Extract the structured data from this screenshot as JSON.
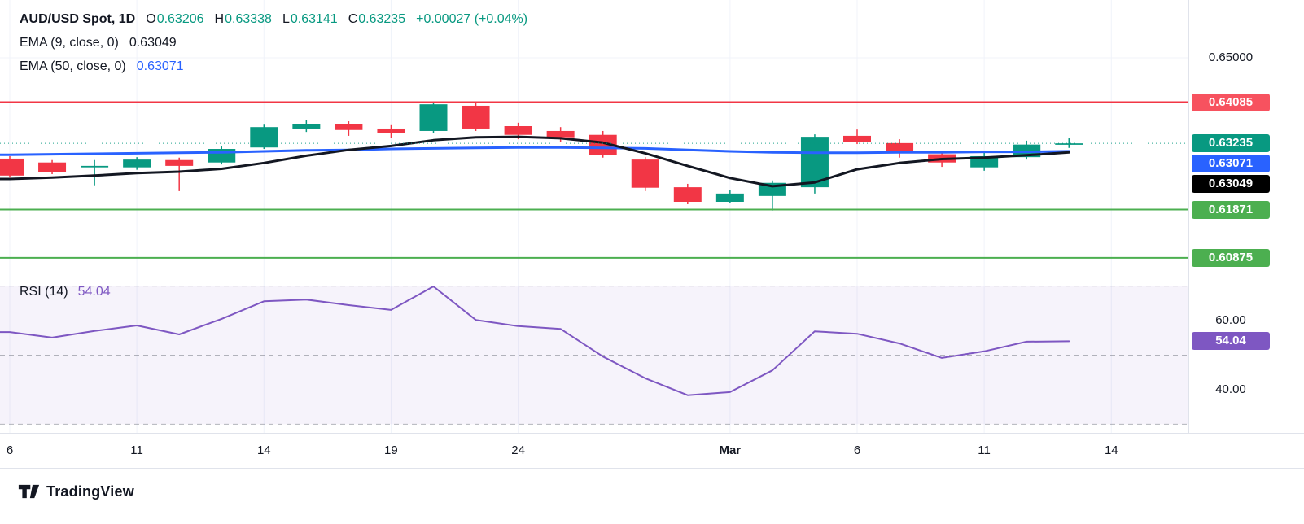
{
  "header": {
    "symbol": "AUD/USD Spot, 1D",
    "ohlc": [
      {
        "label": "O",
        "value": "0.63206"
      },
      {
        "label": "H",
        "value": "0.63338"
      },
      {
        "label": "L",
        "value": "0.63141"
      },
      {
        "label": "C",
        "value": "0.63235"
      }
    ],
    "change": "+0.00027 (+0.04%)",
    "ema9_label": "EMA (9, close, 0)",
    "ema9_value": "0.63049",
    "ema50_label": "EMA (50, close, 0)",
    "ema50_value": "0.63071"
  },
  "rsi_panel": {
    "label": "RSI (14)",
    "value": "54.04"
  },
  "footer": {
    "brand": "TradingView"
  },
  "colors": {
    "up": "#089981",
    "down": "#f23645",
    "resistance_line": "#f23645",
    "support_line": "#4caf50",
    "grid": "#f0f3fa",
    "dashed": "#787b86",
    "rsi_line": "#7e57c2",
    "red_badge": "#f7525f",
    "close_badge": "#089981",
    "blue_badge": "#2962ff",
    "black_badge": "#000000",
    "support_badge": "#4caf50",
    "purple_badge": "#7e57c2",
    "text": "#131722",
    "header_green": "#089981"
  },
  "price_scale": {
    "labels": [
      {
        "text": "0.65000",
        "style": "plain",
        "value": 0.65,
        "pane": "price"
      },
      {
        "text": "0.64085",
        "style": "red",
        "value": 0.64085,
        "pane": "price"
      },
      {
        "text": "0.63235",
        "style": "close",
        "value": 0.63235,
        "pane": "price",
        "stack": 0
      },
      {
        "text": "0.63071",
        "style": "blue",
        "value": 0.63071,
        "pane": "price",
        "stack": 1
      },
      {
        "text": "0.63049",
        "style": "black",
        "value": 0.63049,
        "pane": "price",
        "stack": 2
      },
      {
        "text": "0.61871",
        "style": "support",
        "value": 0.61871,
        "pane": "price"
      },
      {
        "text": "0.60875",
        "style": "support",
        "value": 0.60875,
        "pane": "price"
      },
      {
        "text": "60.00",
        "style": "plain",
        "value": 60,
        "pane": "rsi"
      },
      {
        "text": "54.04",
        "style": "purple",
        "value": 54.04,
        "pane": "rsi"
      },
      {
        "text": "40.00",
        "style": "plain",
        "value": 40,
        "pane": "rsi"
      }
    ]
  },
  "chart_data": {
    "type": "candlestick",
    "title": "AUD/USD Spot, 1D",
    "interval": "1D",
    "price_ylim": [
      0.6047,
      0.6619
    ],
    "rsi_ylim": [
      27.5,
      72.5
    ],
    "price_grid": 0.65,
    "levels": {
      "resistance": 0.64085,
      "support": [
        0.61871,
        0.60875
      ],
      "last_close": 0.63235
    },
    "candles": [
      {
        "t": "Feb 6",
        "o": 0.6292,
        "h": 0.6297,
        "l": 0.6253,
        "c": 0.6257
      },
      {
        "t": "Feb 7",
        "o": 0.6284,
        "h": 0.6289,
        "l": 0.626,
        "c": 0.6264
      },
      {
        "t": "Feb 10",
        "o": 0.6274,
        "h": 0.6289,
        "l": 0.6237,
        "c": 0.6277
      },
      {
        "t": "Feb 11",
        "o": 0.6274,
        "h": 0.6295,
        "l": 0.6269,
        "c": 0.629
      },
      {
        "t": "Feb 12",
        "o": 0.6289,
        "h": 0.6294,
        "l": 0.6225,
        "c": 0.6277
      },
      {
        "t": "Feb 13",
        "o": 0.6284,
        "h": 0.6317,
        "l": 0.628,
        "c": 0.6312
      },
      {
        "t": "Feb 14",
        "o": 0.6315,
        "h": 0.6362,
        "l": 0.6312,
        "c": 0.6357
      },
      {
        "t": "Feb 17",
        "o": 0.6354,
        "h": 0.6371,
        "l": 0.6347,
        "c": 0.6363
      },
      {
        "t": "Feb 18",
        "o": 0.6363,
        "h": 0.6369,
        "l": 0.6339,
        "c": 0.6351
      },
      {
        "t": "Feb 19",
        "o": 0.6354,
        "h": 0.6361,
        "l": 0.6334,
        "c": 0.6344
      },
      {
        "t": "Feb 20",
        "o": 0.6349,
        "h": 0.6408,
        "l": 0.6344,
        "c": 0.6404
      },
      {
        "t": "Feb 21",
        "o": 0.6401,
        "h": 0.6406,
        "l": 0.6349,
        "c": 0.6354
      },
      {
        "t": "Feb 24",
        "o": 0.6359,
        "h": 0.6366,
        "l": 0.6332,
        "c": 0.6341
      },
      {
        "t": "Feb 25",
        "o": 0.6349,
        "h": 0.6357,
        "l": 0.6327,
        "c": 0.6336
      },
      {
        "t": "Feb 26",
        "o": 0.6341,
        "h": 0.6349,
        "l": 0.6294,
        "c": 0.6299
      },
      {
        "t": "Feb 27",
        "o": 0.629,
        "h": 0.6295,
        "l": 0.6225,
        "c": 0.6232
      },
      {
        "t": "Feb 28",
        "o": 0.6233,
        "h": 0.624,
        "l": 0.6198,
        "c": 0.6203
      },
      {
        "t": "Mar 3",
        "o": 0.6203,
        "h": 0.6227,
        "l": 0.62,
        "c": 0.622
      },
      {
        "t": "Mar 4",
        "o": 0.6215,
        "h": 0.6247,
        "l": 0.6185,
        "c": 0.6242
      },
      {
        "t": "Mar 5",
        "o": 0.6233,
        "h": 0.6342,
        "l": 0.622,
        "c": 0.6337
      },
      {
        "t": "Mar 6",
        "o": 0.6339,
        "h": 0.6352,
        "l": 0.6322,
        "c": 0.6327
      },
      {
        "t": "Mar 7",
        "o": 0.6324,
        "h": 0.6332,
        "l": 0.6294,
        "c": 0.6304
      },
      {
        "t": "Mar 10",
        "o": 0.6301,
        "h": 0.6307,
        "l": 0.6275,
        "c": 0.6284
      },
      {
        "t": "Mar 11",
        "o": 0.6274,
        "h": 0.6304,
        "l": 0.6267,
        "c": 0.6297
      },
      {
        "t": "Mar 12",
        "o": 0.6295,
        "h": 0.6329,
        "l": 0.629,
        "c": 0.6321
      },
      {
        "t": "Mar 13",
        "o": 0.63206,
        "h": 0.63338,
        "l": 0.63141,
        "c": 0.63235
      }
    ],
    "ema9": [
      0.625,
      0.6253,
      0.6257,
      0.6262,
      0.6265,
      0.6271,
      0.6283,
      0.6298,
      0.631,
      0.6318,
      0.633,
      0.6336,
      0.6337,
      0.6334,
      0.6325,
      0.6303,
      0.6277,
      0.6252,
      0.6235,
      0.6243,
      0.627,
      0.6283,
      0.6291,
      0.6294,
      0.6299,
      0.63049
    ],
    "ema50": [
      0.63,
      0.6301,
      0.6302,
      0.6303,
      0.6304,
      0.6305,
      0.6307,
      0.6309,
      0.631,
      0.6312,
      0.6313,
      0.6314,
      0.6315,
      0.6315,
      0.6314,
      0.6313,
      0.631,
      0.6307,
      0.6305,
      0.6304,
      0.6304,
      0.6305,
      0.6305,
      0.6306,
      0.6306,
      0.63071
    ],
    "rsi14": [
      56.7,
      55.1,
      57.0,
      58.6,
      56.0,
      60.5,
      65.6,
      66.1,
      64.5,
      63.1,
      69.9,
      60.2,
      58.4,
      57.6,
      49.6,
      43.3,
      38.4,
      39.3,
      45.6,
      56.9,
      56.2,
      53.4,
      49.2,
      51.1,
      53.9,
      54.04
    ],
    "rsi_band": [
      30,
      70
    ],
    "rsi_lines": [
      70,
      50,
      30
    ],
    "time_ticks": [
      {
        "index": 0,
        "label": "6"
      },
      {
        "index": 3,
        "label": "11"
      },
      {
        "index": 6,
        "label": "14"
      },
      {
        "index": 9,
        "label": "19"
      },
      {
        "index": 12,
        "label": "24"
      },
      {
        "index": 17,
        "label": "Mar",
        "bold": true
      },
      {
        "index": 20,
        "label": "6"
      },
      {
        "index": 23,
        "label": "11"
      },
      {
        "index": 26,
        "label": "14"
      }
    ]
  }
}
